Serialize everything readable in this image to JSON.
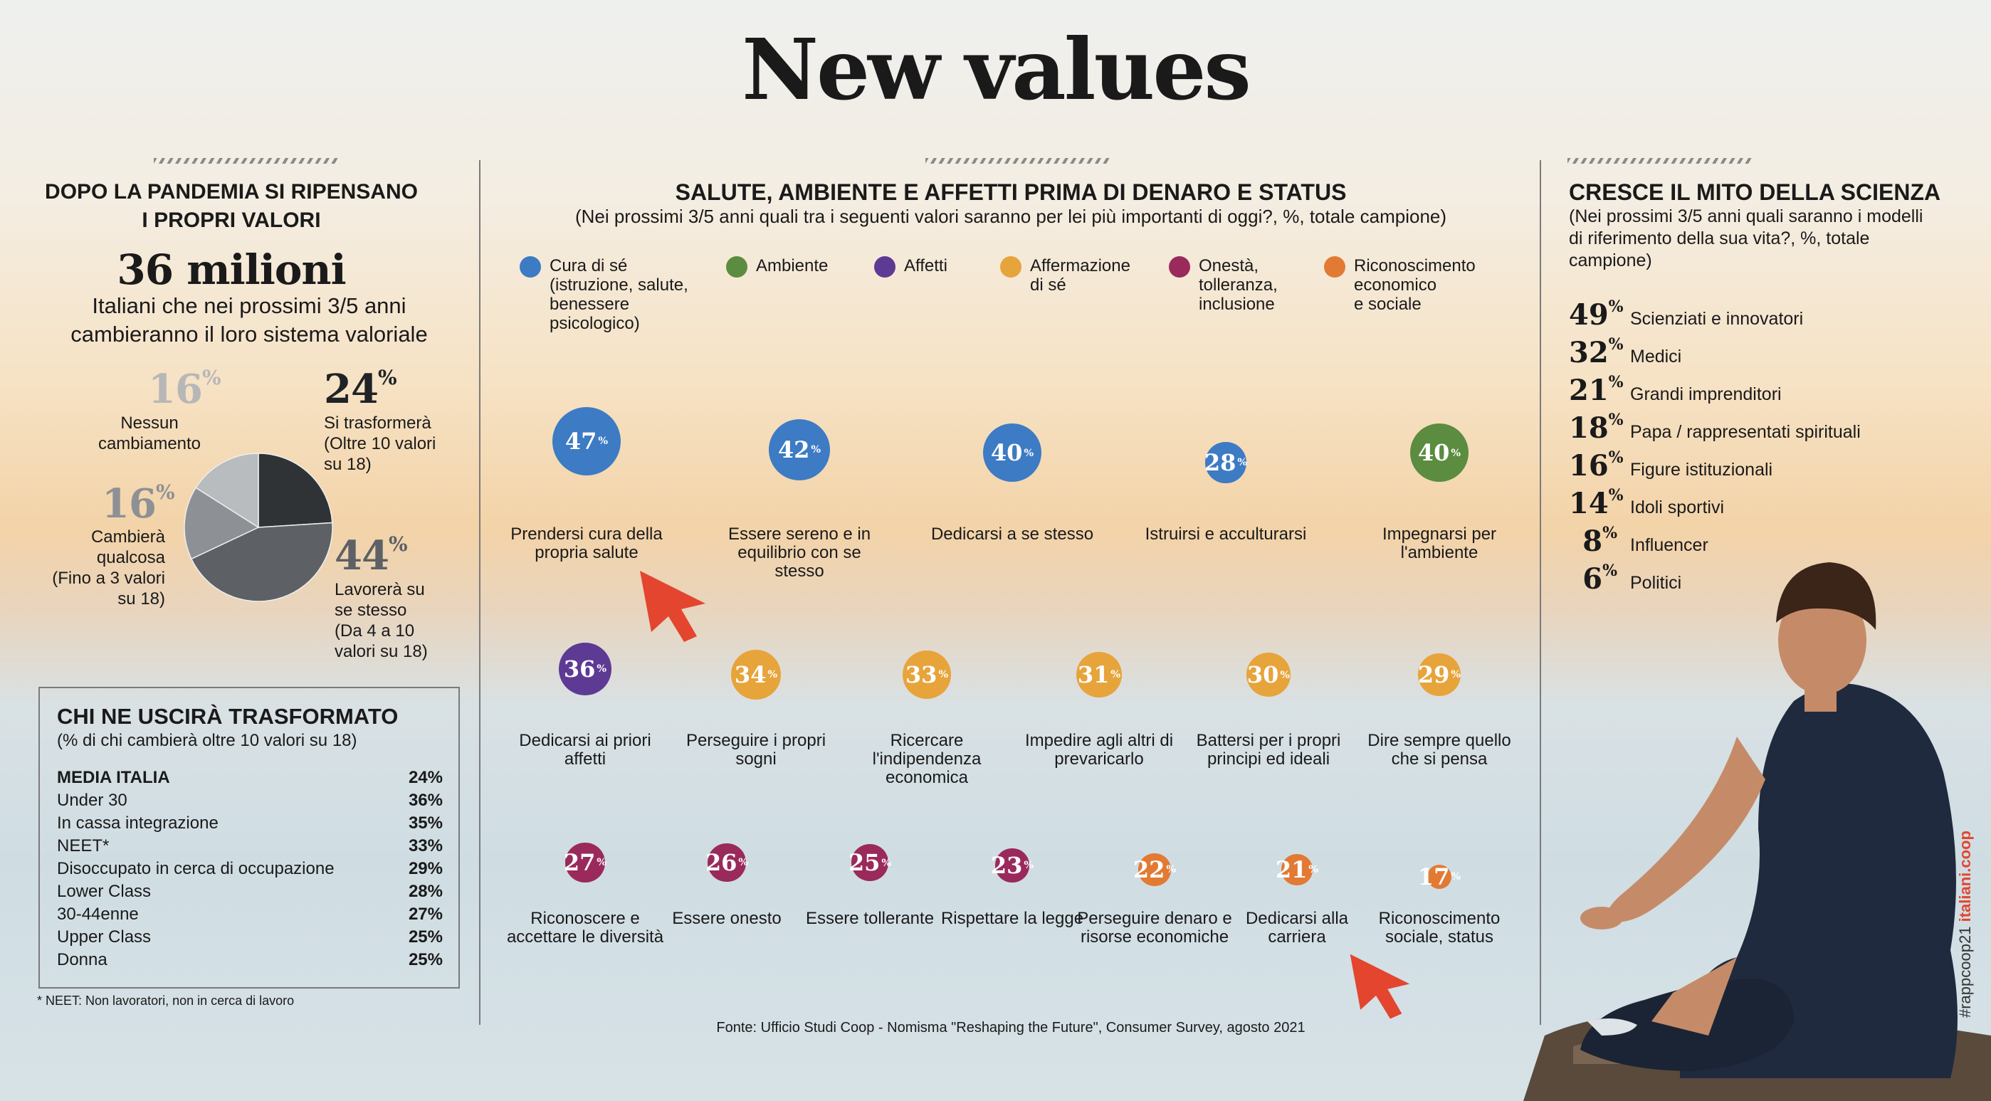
{
  "title": "New values",
  "left": {
    "heading_line1": "DOPO LA PANDEMIA SI RIPENSANO",
    "heading_line2": "I PROPRI VALORI",
    "big_number": "36 milioni",
    "big_desc_line1": "Italiani che nei prossimi 3/5 anni",
    "big_desc_line2": "cambieranno il loro sistema valoriale",
    "pie_note_top": {
      "value": "16",
      "l1": "Nessun",
      "l2": "cambiamento"
    },
    "pie_note_24": {
      "value": "24",
      "l1": "Si trasformerà",
      "l2": "(Oltre 10 valori",
      "l3": "su 18)"
    },
    "pie_note_16b": {
      "value": "16",
      "l1": "Cambierà",
      "l2": "qualcosa",
      "l3": "(Fino a 3 valori",
      "l4": "su 18)"
    },
    "pie_note_44": {
      "value": "44",
      "l1": "Lavorerà su",
      "l2": "se stesso",
      "l3": "(Da 4 a 10",
      "l4": "valori su 18)"
    },
    "pct_sign": "%",
    "table": {
      "title": "CHI NE USCIRÀ TRASFORMATO",
      "subtitle": "(% di chi cambierà oltre 10 valori su 18)",
      "rows": [
        {
          "label": "MEDIA ITALIA",
          "value": "24%"
        },
        {
          "label": "Under 30",
          "value": "36%"
        },
        {
          "label": "In cassa integrazione",
          "value": "35%"
        },
        {
          "label": "NEET*",
          "value": "33%"
        },
        {
          "label": "Disoccupato in cerca di occupazione",
          "value": "29%"
        },
        {
          "label": "Lower Class",
          "value": "28%"
        },
        {
          "label": "30-44enne",
          "value": "27%"
        },
        {
          "label": "Upper Class",
          "value": "25%"
        },
        {
          "label": "Donna",
          "value": "25%"
        }
      ]
    },
    "footnote": "* NEET: Non lavoratori, non in cerca di lavoro"
  },
  "center": {
    "heading": "SALUTE, AMBIENTE E AFFETTI PRIMA DI DENARO E STATUS",
    "subheading": "(Nei prossimi 3/5 anni quali tra i seguenti valori saranno per lei più importanti di oggi?, %, totale campione)",
    "legend": [
      {
        "l1": "Cura di sé",
        "l2": "(istruzione, salute,",
        "l3": "benessere",
        "l4": "psicologico)"
      },
      {
        "l1": "Ambiente",
        "l2": "",
        "l3": "",
        "l4": ""
      },
      {
        "l1": "Affetti",
        "l2": "",
        "l3": "",
        "l4": ""
      },
      {
        "l1": "Affermazione",
        "l2": "di sé",
        "l3": "",
        "l4": ""
      },
      {
        "l1": "Onestà,",
        "l2": "tolleranza,",
        "l3": "inclusione",
        "l4": ""
      },
      {
        "l1": "Riconoscimento",
        "l2": "economico",
        "l3": "e sociale",
        "l4": ""
      }
    ],
    "source": "Fonte: Ufficio Studi Coop - Nomisma \"Reshaping the Future\", Consumer Survey, agosto 2021"
  },
  "right": {
    "heading": "CRESCE IL MITO DELLA SCIENZA",
    "sub_l1": "(Nei prossimi 3/5 anni quali saranno i modelli",
    "sub_l2": "di riferimento della sua vita?, %, totale",
    "sub_l3": "campione)",
    "items": [
      {
        "value": "49",
        "label": "Scienziati e innovatori"
      },
      {
        "value": "32",
        "label": "Medici"
      },
      {
        "value": "21",
        "label": "Grandi imprenditori"
      },
      {
        "value": "18",
        "label": "Papa / rappresentati spirituali"
      },
      {
        "value": "16",
        "label": "Figure istituzionali"
      },
      {
        "value": "14",
        "label": "Idoli sportivi"
      },
      {
        "value": "8",
        "label": "Influencer"
      },
      {
        "value": "6",
        "label": "Politici"
      }
    ]
  },
  "side_tag": {
    "hashtag": "#rappcoop21",
    "site": "italiani.coop"
  },
  "colors": {
    "cura": "#3d7bc4",
    "ambiente": "#5b8c3f",
    "affetti": "#5d3a94",
    "affermazione": "#e7a43b",
    "onesta": "#9a2a5b",
    "riconoscimento": "#e27a34",
    "accent": "#e3452f"
  },
  "chart_data": [
    {
      "type": "pie",
      "title": "DOPO LA PANDEMIA SI RIPENSANO I PROPRI VALORI",
      "categories": [
        "Si trasformerà (Oltre 10 valori su 18)",
        "Lavorerà su se stesso (Da 4 a 10 valori su 18)",
        "Cambierà qualcosa (Fino a 3 valori su 18)",
        "Nessun cambiamento"
      ],
      "values": [
        24,
        44,
        16,
        16
      ],
      "colors": [
        "#2f3336",
        "#5d6165",
        "#8d9195",
        "#b9bcbf"
      ]
    },
    {
      "type": "bubble",
      "title": "SALUTE, AMBIENTE E AFFETTI PRIMA DI DENARO E STATUS",
      "unit": "%",
      "items": [
        {
          "label": "Prendersi cura della propria salute",
          "value": 47,
          "group": "cura"
        },
        {
          "label": "Essere sereno e in equilibrio con se stesso",
          "value": 42,
          "group": "cura"
        },
        {
          "label": "Dedicarsi a se stesso",
          "value": 40,
          "group": "cura"
        },
        {
          "label": "Istruirsi e acculturarsi",
          "value": 28,
          "group": "cura"
        },
        {
          "label": "Impegnarsi per l'ambiente",
          "value": 40,
          "group": "ambiente"
        },
        {
          "label": "Dedicarsi ai priori affetti",
          "value": 36,
          "group": "affetti"
        },
        {
          "label": "Perseguire i propri sogni",
          "value": 34,
          "group": "affermazione"
        },
        {
          "label": "Ricercare l'indipendenza economica",
          "value": 33,
          "group": "affermazione"
        },
        {
          "label": "Impedire agli altri di prevaricarlo",
          "value": 31,
          "group": "affermazione"
        },
        {
          "label": "Battersi per i propri principi ed ideali",
          "value": 30,
          "group": "affermazione"
        },
        {
          "label": "Dire sempre quello che si pensa",
          "value": 29,
          "group": "affermazione"
        },
        {
          "label": "Riconoscere e accettare le diversità",
          "value": 27,
          "group": "onesta"
        },
        {
          "label": "Essere onesto",
          "value": 26,
          "group": "onesta"
        },
        {
          "label": "Essere tollerante",
          "value": 25,
          "group": "onesta"
        },
        {
          "label": "Rispettare la legge",
          "value": 23,
          "group": "onesta"
        },
        {
          "label": "Perseguire denaro e risorse economiche",
          "value": 22,
          "group": "riconoscimento"
        },
        {
          "label": "Dedicarsi alla carriera",
          "value": 21,
          "group": "riconoscimento"
        },
        {
          "label": "Riconoscimento sociale, status",
          "value": 17,
          "group": "riconoscimento"
        }
      ]
    }
  ]
}
